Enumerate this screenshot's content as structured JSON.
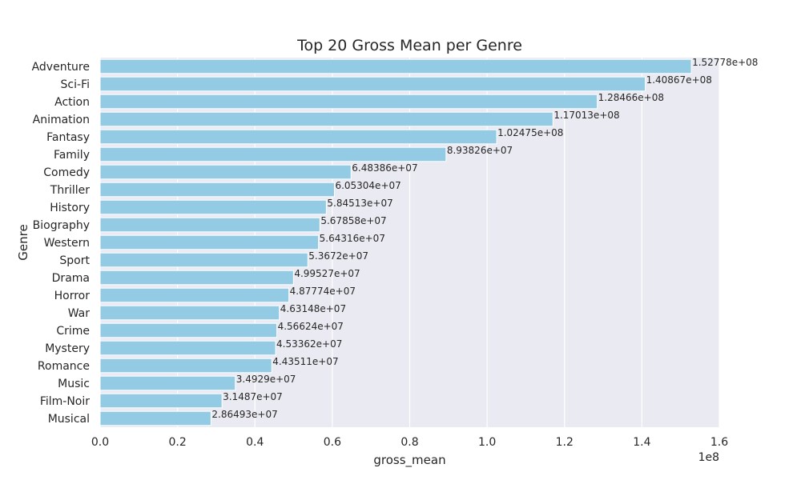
{
  "chart_data": {
    "type": "bar",
    "orientation": "horizontal",
    "title": "Top 20 Gross Mean per Genre",
    "xlabel": "gross_mean",
    "ylabel": "Genre",
    "x_offset_label": "1e8",
    "xlim": [
      0,
      1.6
    ],
    "x_ticks": [
      "0.0",
      "0.2",
      "0.4",
      "0.6",
      "0.8",
      "1.0",
      "1.2",
      "1.4",
      "1.6"
    ],
    "grid": true,
    "background_color": "#eaeaf2",
    "bar_color": "#92cbe3",
    "categories": [
      "Adventure",
      "Sci-Fi",
      "Action",
      "Animation",
      "Fantasy",
      "Family",
      "Comedy",
      "Thriller",
      "History",
      "Biography",
      "Western",
      "Sport",
      "Drama",
      "Horror",
      "War",
      "Crime",
      "Mystery",
      "Romance",
      "Music",
      "Film-Noir",
      "Musical"
    ],
    "values": [
      152778000,
      140867000,
      128466000,
      117013000,
      102475000,
      89382600,
      64838600,
      60530400,
      58451300,
      56785800,
      56431600,
      53672000,
      49952700,
      48777400,
      46314800,
      45662400,
      45336200,
      44351100,
      34929000,
      31487000,
      28649300
    ],
    "value_labels": [
      "1.52778e+08",
      "1.40867e+08",
      "1.28466e+08",
      "1.17013e+08",
      "1.02475e+08",
      "8.93826e+07",
      "6.48386e+07",
      "6.05304e+07",
      "5.84513e+07",
      "5.67858e+07",
      "5.64316e+07",
      "5.3672e+07",
      "4.99527e+07",
      "4.87774e+07",
      "4.63148e+07",
      "4.56624e+07",
      "4.53362e+07",
      "4.43511e+07",
      "3.4929e+07",
      "3.1487e+07",
      "2.86493e+07"
    ]
  }
}
